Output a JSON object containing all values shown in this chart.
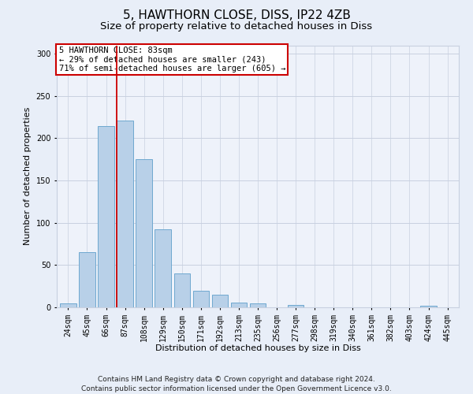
{
  "title": "5, HAWTHORN CLOSE, DISS, IP22 4ZB",
  "subtitle": "Size of property relative to detached houses in Diss",
  "xlabel": "Distribution of detached houses by size in Diss",
  "ylabel": "Number of detached properties",
  "categories": [
    "24sqm",
    "45sqm",
    "66sqm",
    "87sqm",
    "108sqm",
    "129sqm",
    "150sqm",
    "171sqm",
    "192sqm",
    "213sqm",
    "235sqm",
    "256sqm",
    "277sqm",
    "298sqm",
    "319sqm",
    "340sqm",
    "361sqm",
    "382sqm",
    "403sqm",
    "424sqm",
    "445sqm"
  ],
  "values": [
    5,
    65,
    214,
    221,
    175,
    92,
    40,
    20,
    15,
    6,
    5,
    0,
    3,
    0,
    0,
    0,
    0,
    0,
    0,
    2,
    0
  ],
  "bar_color": "#b8d0e8",
  "bar_edge_color": "#6ea8d0",
  "vline_x_index": 2.575,
  "vline_color": "#cc0000",
  "annotation_text": "5 HAWTHORN CLOSE: 83sqm\n← 29% of detached houses are smaller (243)\n71% of semi-detached houses are larger (605) →",
  "annotation_box_color": "white",
  "annotation_box_edge": "#cc0000",
  "ylim": [
    0,
    310
  ],
  "yticks": [
    0,
    50,
    100,
    150,
    200,
    250,
    300
  ],
  "footer": "Contains HM Land Registry data © Crown copyright and database right 2024.\nContains public sector information licensed under the Open Government Licence v3.0.",
  "bg_color": "#e8eef8",
  "plot_bg_color": "#eef2fa",
  "grid_color": "#c8d0e0",
  "title_fontsize": 11,
  "subtitle_fontsize": 9.5,
  "label_fontsize": 8,
  "tick_fontsize": 7,
  "footer_fontsize": 6.5,
  "annot_fontsize": 7.5
}
